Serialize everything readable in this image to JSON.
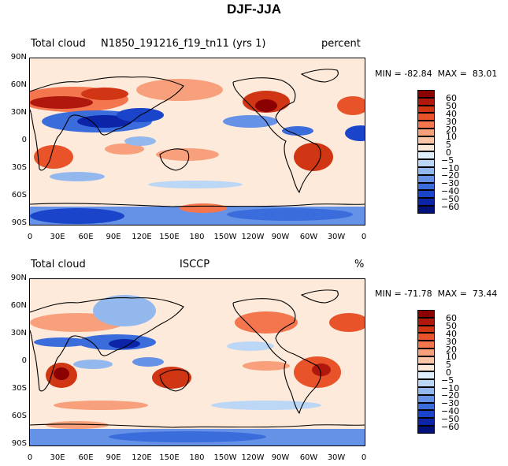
{
  "figure_title": "DJF-JJA",
  "panels": [
    {
      "left_label": "Total cloud",
      "center_label": "N1850_191216_f19_tn11 (yrs 1)",
      "right_label": "percent",
      "min_label": "MIN =",
      "min_value": "-82.84",
      "max_label": "MAX =",
      "max_value": "83.01"
    },
    {
      "left_label": "Total cloud",
      "center_label": "ISCCP",
      "right_label": "%",
      "min_label": "MIN =",
      "min_value": "-71.78",
      "max_label": "MAX =",
      "max_value": "73.44"
    }
  ],
  "lat_ticks": [
    "90N",
    "60N",
    "30N",
    "0",
    "30S",
    "60S",
    "90S"
  ],
  "lon_ticks": [
    "0",
    "30E",
    "60E",
    "90E",
    "120E",
    "150E",
    "180",
    "150W",
    "120W",
    "90W",
    "60W",
    "30W",
    "0"
  ],
  "colorbar": {
    "labels": [
      "60",
      "50",
      "40",
      "30",
      "20",
      "10",
      "5",
      "0",
      "−5",
      "−10",
      "−20",
      "−30",
      "−40",
      "−50",
      "−60"
    ],
    "colors": [
      "#8b0000",
      "#b0170d",
      "#d03514",
      "#e8532a",
      "#f3764e",
      "#f8a07b",
      "#fbc6a8",
      "#fdeadb",
      "#dfeffd",
      "#bcd7f6",
      "#93b8ee",
      "#6592e6",
      "#3a6cdb",
      "#1a44c9",
      "#0b24a8",
      "#00127a"
    ]
  },
  "colors": {
    "ocean_neutral": "#fdeadb",
    "coast": "#000000"
  }
}
